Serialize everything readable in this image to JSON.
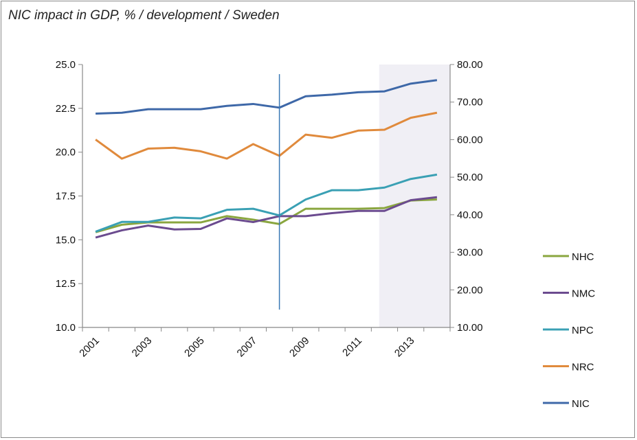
{
  "chart_data": {
    "type": "line",
    "title": "NIC impact in GDP, % / development / Sweden",
    "x": [
      2001,
      2002,
      2003,
      2004,
      2005,
      2006,
      2007,
      2008,
      2009,
      2010,
      2011,
      2012,
      2013,
      2014
    ],
    "x_tick_labels": [
      "2001",
      "2003",
      "2005",
      "2007",
      "2009",
      "2011",
      "2013"
    ],
    "y_left": {
      "range": [
        10.0,
        25.0
      ],
      "ticks": [
        "10.0",
        "12.5",
        "15.0",
        "17.5",
        "20.0",
        "22.5",
        "25.0"
      ]
    },
    "y_right": {
      "range": [
        10.0,
        80.0
      ],
      "ticks": [
        "10.00",
        "20.00",
        "30.00",
        "40.00",
        "50.00",
        "60.00",
        "70.00",
        "80.00"
      ]
    },
    "grid": false,
    "legend": "right",
    "vertical_marker_x": 2008,
    "shaded_region_x": [
      2011.8,
      2014.5
    ],
    "shade_color": "#f0eff5",
    "series": [
      {
        "name": "NHC",
        "color": "#8aa63f",
        "values": [
          15.43,
          15.86,
          15.99,
          15.99,
          15.99,
          16.35,
          16.15,
          15.9,
          16.77,
          16.77,
          16.77,
          16.81,
          17.24,
          17.3
        ]
      },
      {
        "name": "NMC",
        "color": "#6b4b8f",
        "values": [
          15.13,
          15.54,
          15.81,
          15.59,
          15.62,
          16.22,
          16.01,
          16.35,
          16.35,
          16.52,
          16.65,
          16.65,
          17.26,
          17.43
        ]
      },
      {
        "name": "NPC",
        "color": "#3aa0b4",
        "values": [
          15.46,
          16.02,
          16.02,
          16.27,
          16.22,
          16.71,
          16.77,
          16.39,
          17.3,
          17.83,
          17.83,
          17.98,
          18.47,
          18.72
        ]
      },
      {
        "name": "NRC",
        "color": "#e08a3c",
        "values": [
          20.72,
          19.63,
          20.2,
          20.25,
          20.05,
          19.63,
          20.46,
          19.79,
          21.0,
          20.82,
          21.23,
          21.28,
          21.96,
          22.25
        ]
      },
      {
        "name": "NIC",
        "color": "#3e68a8",
        "values": [
          22.2,
          22.25,
          22.45,
          22.45,
          22.45,
          22.64,
          22.75,
          22.54,
          23.19,
          23.28,
          23.42,
          23.47,
          23.91,
          24.11
        ]
      }
    ]
  }
}
